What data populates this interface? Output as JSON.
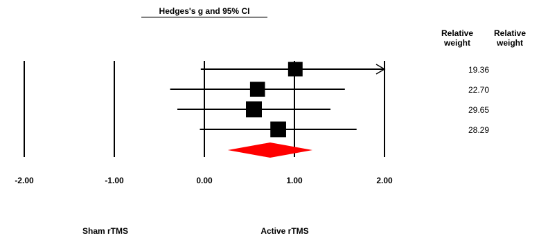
{
  "chart_data": {
    "type": "forest",
    "title": "Hedges's g and 95% CI",
    "xlim": [
      -2,
      2
    ],
    "x_ticks": [
      "-2.00",
      "-1.00",
      "0.00",
      "1.00",
      "2.00"
    ],
    "x_tick_values": [
      -2,
      -1,
      0,
      1,
      2
    ],
    "column_headers": [
      "Relative\nweight",
      "Relative\nweight"
    ],
    "column_headers_lines": [
      [
        "Relative",
        "weight"
      ],
      [
        "Relative",
        "weight"
      ]
    ],
    "studies": [
      {
        "g": 1.01,
        "lower": -0.04,
        "upper": 2.0,
        "arrow_upper": true,
        "relative_weight": "19.36"
      },
      {
        "g": 0.59,
        "lower": -0.38,
        "upper": 1.56,
        "arrow_upper": false,
        "relative_weight": "22.70"
      },
      {
        "g": 0.55,
        "lower": -0.3,
        "upper": 1.4,
        "arrow_upper": false,
        "relative_weight": "29.65"
      },
      {
        "g": 0.82,
        "lower": -0.05,
        "upper": 1.69,
        "arrow_upper": false,
        "relative_weight": "28.29"
      }
    ],
    "summary": {
      "g": 0.73,
      "lower": 0.26,
      "upper": 1.2,
      "color": "#ff0000"
    },
    "left_label": "Sham rTMS",
    "right_label": "Active rTMS",
    "grid": false
  }
}
